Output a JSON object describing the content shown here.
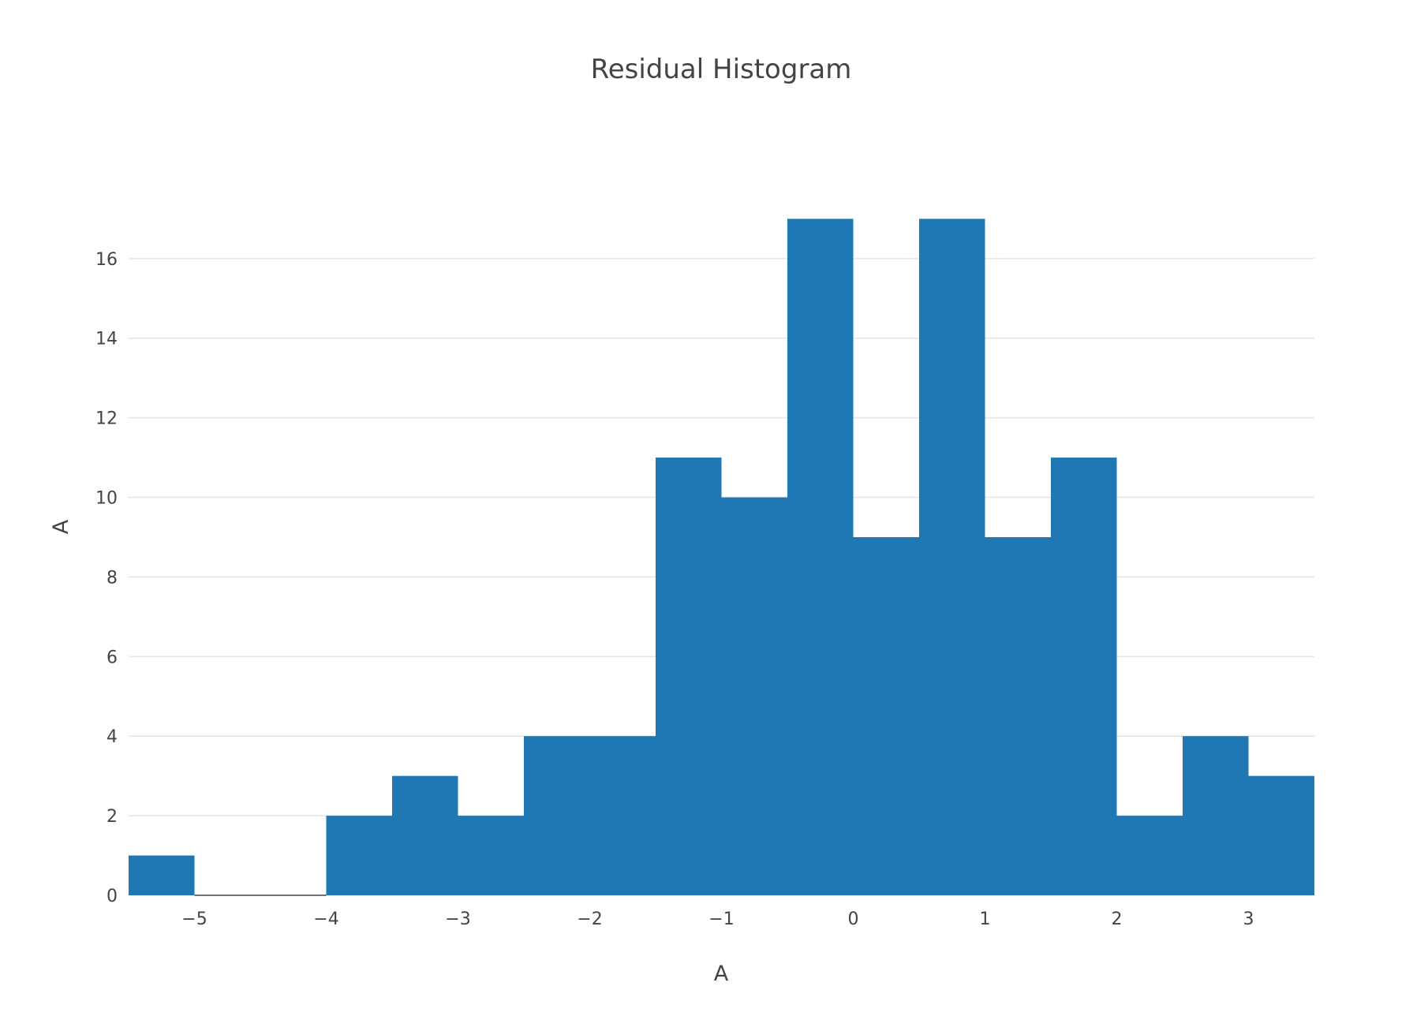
{
  "chart_data": {
    "type": "bar",
    "title": "Residual Histogram",
    "xlabel": "A",
    "ylabel": "A",
    "bin_width": 0.5,
    "bins": [
      {
        "start": -5.5,
        "end": -5.0,
        "count": 1
      },
      {
        "start": -5.0,
        "end": -4.5,
        "count": 0
      },
      {
        "start": -4.5,
        "end": -4.0,
        "count": 0
      },
      {
        "start": -4.0,
        "end": -3.5,
        "count": 2
      },
      {
        "start": -3.5,
        "end": -3.0,
        "count": 3
      },
      {
        "start": -3.0,
        "end": -2.5,
        "count": 2
      },
      {
        "start": -2.5,
        "end": -2.0,
        "count": 4
      },
      {
        "start": -2.0,
        "end": -1.5,
        "count": 4
      },
      {
        "start": -1.5,
        "end": -1.0,
        "count": 11
      },
      {
        "start": -1.0,
        "end": -0.5,
        "count": 10
      },
      {
        "start": -0.5,
        "end": 0.0,
        "count": 17
      },
      {
        "start": 0.0,
        "end": 0.5,
        "count": 9
      },
      {
        "start": 0.5,
        "end": 1.0,
        "count": 17
      },
      {
        "start": 1.0,
        "end": 1.5,
        "count": 9
      },
      {
        "start": 1.5,
        "end": 2.0,
        "count": 11
      },
      {
        "start": 2.0,
        "end": 2.5,
        "count": 2
      },
      {
        "start": 2.5,
        "end": 3.0,
        "count": 4
      },
      {
        "start": 3.0,
        "end": 3.5,
        "count": 3
      }
    ],
    "xlim": [
      -5.5,
      3.5
    ],
    "ylim": [
      0,
      17.9
    ],
    "x_ticks": [
      -5,
      -4,
      -3,
      -2,
      -1,
      0,
      1,
      2,
      3
    ],
    "x_tick_labels": [
      "−5",
      "−4",
      "−3",
      "−2",
      "−1",
      "0",
      "1",
      "2",
      "3"
    ],
    "y_ticks": [
      0,
      2,
      4,
      6,
      8,
      10,
      12,
      14,
      16
    ],
    "y_tick_labels": [
      "0",
      "2",
      "4",
      "6",
      "8",
      "10",
      "12",
      "14",
      "16"
    ],
    "grid": true,
    "legend": "none",
    "colors": {
      "bar": "#1f77b4",
      "grid": "#e5e5e5",
      "text": "#444444",
      "baseline": "#444444"
    }
  }
}
